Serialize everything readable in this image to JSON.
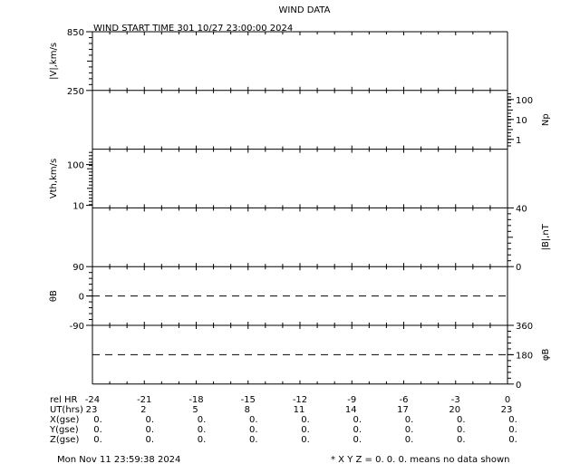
{
  "title": "WIND DATA",
  "subtitle": "WIND START TIME 301 10/27 23:00:00 2024",
  "footer_left": "Mon Nov 11 23:59:38 2024",
  "footer_right": "* X Y Z = 0. 0. 0. means no data shown",
  "chart_data": {
    "type": "line",
    "title": "WIND DATA",
    "subtitle": "WIND START TIME 301 10/27 23:00:00 2024",
    "xlim": [
      -24,
      0
    ],
    "panels": [
      {
        "ylabel": "|V|,km/s",
        "side": "left",
        "scale": "linear",
        "ylim": [
          250,
          850
        ],
        "tick_labels": [
          "850",
          "250"
        ],
        "series": []
      },
      {
        "ylabel": "Np",
        "side": "right",
        "scale": "log",
        "ylim": [
          0.5,
          200
        ],
        "tick_labels": [
          "100",
          "10",
          "1"
        ],
        "series": []
      },
      {
        "ylabel": "Vth,km/s",
        "side": "left",
        "scale": "log",
        "ylim": [
          10,
          200
        ],
        "tick_labels": [
          "100",
          "10"
        ],
        "series": []
      },
      {
        "ylabel": "|B|,nT",
        "side": "right",
        "scale": "linear",
        "ylim": [
          0,
          40
        ],
        "tick_labels": [
          "40",
          "0"
        ],
        "series": []
      },
      {
        "ylabel": "θB",
        "side": "left",
        "scale": "linear",
        "ylim": [
          -90,
          90
        ],
        "tick_labels": [
          "90",
          "0",
          "-90"
        ],
        "reference_line": 0,
        "series": []
      },
      {
        "ylabel": "φB",
        "side": "right",
        "scale": "linear",
        "ylim": [
          0,
          360
        ],
        "tick_labels": [
          "360",
          "180",
          "0"
        ],
        "reference_line": 180,
        "series": []
      }
    ],
    "table": {
      "row_labels": [
        "rel HR",
        "UT(hrs)",
        "X(gse)",
        "Y(gse)",
        "Z(gse)"
      ],
      "rel_hr": [
        "-24",
        "-21",
        "-18",
        "-15",
        "-12",
        "-9",
        "-6",
        "-3",
        "0"
      ],
      "ut_hrs": [
        "23",
        "2",
        "5",
        "8",
        "11",
        "14",
        "17",
        "20",
        "23"
      ],
      "x_gse": [
        "0.",
        "0.",
        "0.",
        "0.",
        "0.",
        "0.",
        "0.",
        "0.",
        "0."
      ],
      "y_gse": [
        "0.",
        "0.",
        "0.",
        "0.",
        "0.",
        "0.",
        "0.",
        "0.",
        "0."
      ],
      "z_gse": [
        "0.",
        "0.",
        "0.",
        "0.",
        "0.",
        "0.",
        "0.",
        "0.",
        "0."
      ]
    }
  }
}
